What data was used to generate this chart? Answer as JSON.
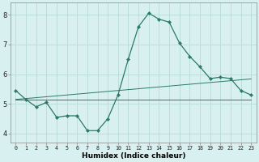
{
  "xlabel": "Humidex (Indice chaleur)",
  "ylabel": "",
  "background_color": "#d8f0f0",
  "grid_color": "#b8dada",
  "line_color": "#2a7a6a",
  "x_ticks": [
    0,
    1,
    2,
    3,
    4,
    5,
    6,
    7,
    8,
    9,
    10,
    11,
    12,
    13,
    14,
    15,
    16,
    17,
    18,
    19,
    20,
    21,
    22,
    23
  ],
  "y_ticks": [
    4,
    5,
    6,
    7,
    8
  ],
  "xlim": [
    -0.5,
    23.5
  ],
  "ylim": [
    3.7,
    8.4
  ],
  "series1_x": [
    0,
    1,
    2,
    3,
    4,
    5,
    6,
    7,
    8,
    9,
    10,
    11,
    12,
    13,
    14,
    15,
    16,
    17,
    18,
    19,
    20,
    21,
    22,
    23
  ],
  "series1_y": [
    5.45,
    5.15,
    4.9,
    5.05,
    4.55,
    4.6,
    4.6,
    4.1,
    4.1,
    4.5,
    5.3,
    6.5,
    7.6,
    8.05,
    7.85,
    7.75,
    7.05,
    6.6,
    6.25,
    5.85,
    5.9,
    5.85,
    5.45,
    5.3
  ],
  "series2_x": [
    0,
    1,
    2,
    3,
    4,
    5,
    6,
    7,
    8,
    9,
    10,
    11,
    12,
    13,
    14,
    15,
    16,
    17,
    18,
    19,
    20,
    21,
    22,
    23
  ],
  "series2_y": [
    5.15,
    5.15,
    5.15,
    5.15,
    5.15,
    5.15,
    5.15,
    5.15,
    5.15,
    5.15,
    5.15,
    5.15,
    5.15,
    5.15,
    5.15,
    5.15,
    5.15,
    5.15,
    5.15,
    5.15,
    5.15,
    5.15,
    5.15,
    5.15
  ],
  "series3_x": [
    0,
    1,
    2,
    3,
    4,
    5,
    6,
    7,
    8,
    9,
    10,
    11,
    12,
    13,
    14,
    15,
    16,
    17,
    18,
    19,
    20,
    21,
    22,
    23
  ],
  "series3_y": [
    5.15,
    5.18,
    5.21,
    5.24,
    5.27,
    5.3,
    5.33,
    5.36,
    5.39,
    5.42,
    5.45,
    5.48,
    5.51,
    5.54,
    5.57,
    5.6,
    5.63,
    5.66,
    5.69,
    5.72,
    5.75,
    5.78,
    5.81,
    5.84
  ],
  "xlabel_fontsize": 6.5,
  "xtick_fontsize": 4.8,
  "ytick_fontsize": 6.0,
  "linewidth": 0.9,
  "markersize": 2.2
}
